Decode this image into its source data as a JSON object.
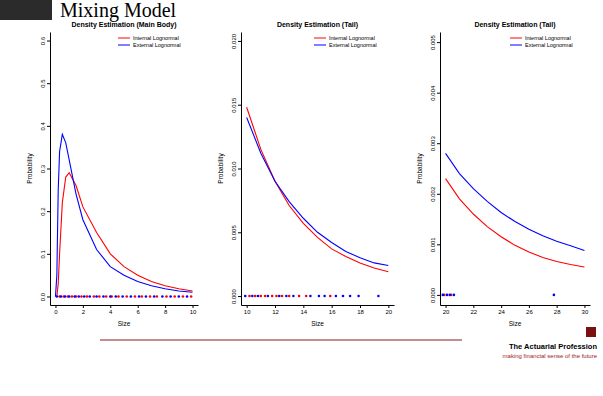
{
  "page": {
    "title": "Mixing Model",
    "footer_title": "The Actuarial Profession",
    "footer_tagline": "making financial sense of the future"
  },
  "chart_data": [
    {
      "type": "line",
      "title": "Density Estimation (Main Body)",
      "x_label": "Size",
      "y_label": "Probability",
      "x": [
        0,
        0.1,
        0.2,
        0.3,
        0.5,
        0.75,
        1,
        1.5,
        2,
        3,
        4,
        5,
        6,
        7,
        8,
        9,
        10
      ],
      "series": [
        {
          "name": "Internal Lognormal",
          "color": "#ff0000",
          "values": [
            0,
            0,
            0.03,
            0.1,
            0.22,
            0.28,
            0.29,
            0.26,
            0.21,
            0.15,
            0.1,
            0.07,
            0.05,
            0.035,
            0.025,
            0.018,
            0.013
          ]
        },
        {
          "name": "External Lognormal",
          "color": "#0000ff",
          "values": [
            0,
            0.05,
            0.25,
            0.34,
            0.38,
            0.36,
            0.32,
            0.24,
            0.18,
            0.11,
            0.07,
            0.05,
            0.035,
            0.025,
            0.018,
            0.013,
            0.01
          ]
        }
      ],
      "rug": [
        {
          "color": "#ff0000",
          "x": [
            0.3,
            0.6,
            0.9,
            1.2,
            1.5,
            1.9,
            2.3,
            2.8,
            3.2,
            3.7,
            4.1,
            4.6,
            5.2,
            5.8,
            6.3,
            6.9,
            7.4,
            8.1,
            8.7,
            9.3,
            9.9
          ],
          "values": [
            0,
            0,
            0,
            0,
            0,
            0,
            0,
            0,
            0,
            0,
            0,
            0,
            0,
            0,
            0,
            0,
            0,
            0,
            0,
            0,
            0
          ]
        },
        {
          "color": "#0000ff",
          "x": [
            0.1,
            0.4,
            0.7,
            1.0,
            1.4,
            1.7,
            2.1,
            2.5,
            3.0,
            3.5,
            4.0,
            4.4,
            4.9,
            5.5,
            6.1,
            6.6,
            7.2,
            7.8,
            8.4,
            9.0,
            9.6
          ],
          "values": [
            0,
            0,
            0,
            0,
            0,
            0,
            0,
            0,
            0,
            0,
            0,
            0,
            0,
            0,
            0,
            0,
            0,
            0,
            0,
            0,
            0
          ]
        }
      ],
      "xlim": [
        -0.4,
        10.4
      ],
      "xticks": [
        0,
        2,
        4,
        6,
        8,
        10
      ],
      "ylim": [
        -0.02,
        0.62
      ],
      "yticks": [
        {
          "value": 0,
          "label": "0.0"
        },
        {
          "value": 0.1,
          "label": "0.1"
        },
        {
          "value": 0.2,
          "label": "0.2"
        },
        {
          "value": 0.3,
          "label": "0.3"
        },
        {
          "value": 0.4,
          "label": "0.4"
        },
        {
          "value": 0.5,
          "label": "0.5"
        },
        {
          "value": 0.6,
          "label": "0.6"
        }
      ],
      "legend": "top-right"
    },
    {
      "type": "line",
      "title": "Density Estimation (Tail)",
      "x_label": "Size",
      "y_label": "Probability",
      "x": [
        10,
        11,
        12,
        13,
        14,
        15,
        16,
        17,
        18,
        19,
        20
      ],
      "series": [
        {
          "name": "Internal Lognormal",
          "color": "#ff0000",
          "values": [
            0.0148,
            0.0115,
            0.009,
            0.0071,
            0.0057,
            0.0046,
            0.0037,
            0.0031,
            0.0026,
            0.0022,
            0.0019
          ]
        },
        {
          "name": "External Lognormal",
          "color": "#0000ff",
          "values": [
            0.014,
            0.0112,
            0.009,
            0.0074,
            0.0061,
            0.005,
            0.0042,
            0.0035,
            0.003,
            0.0026,
            0.0024
          ]
        }
      ],
      "rug": [
        {
          "color": "#ff0000",
          "x": [
            10.2,
            10.6,
            11,
            11.3,
            11.8,
            12.1,
            12.5,
            13,
            13.7,
            14.2,
            15.9
          ],
          "values": [
            0,
            0,
            0,
            0,
            0,
            0,
            0,
            0,
            0,
            0,
            0
          ]
        },
        {
          "color": "#0000ff",
          "x": [
            9.9,
            10.4,
            10.8,
            11.5,
            12.3,
            12.8,
            13.3,
            14.5,
            15.1,
            15.5,
            16.3,
            16.8,
            17.3,
            17.9,
            19.3
          ],
          "values": [
            0,
            0,
            0,
            0,
            0,
            0,
            0,
            0,
            0,
            0,
            0,
            0,
            0,
            0,
            0
          ]
        }
      ],
      "xlim": [
        9.6,
        20.4
      ],
      "xticks": [
        10,
        12,
        14,
        16,
        18,
        20
      ],
      "ylim": [
        -0.0007,
        0.0207
      ],
      "yticks": [
        {
          "value": 0,
          "label": "0.000"
        },
        {
          "value": 0.005,
          "label": "0.005"
        },
        {
          "value": 0.01,
          "label": "0.010"
        },
        {
          "value": 0.015,
          "label": "0.015"
        },
        {
          "value": 0.02,
          "label": "0.020"
        }
      ],
      "legend": "top-right"
    },
    {
      "type": "line",
      "title": "Density Estimation (Tail)",
      "x_label": "Size",
      "y_label": "Probability",
      "x": [
        20,
        21,
        22,
        23,
        24,
        25,
        26,
        27,
        28,
        29,
        30
      ],
      "series": [
        {
          "name": "Internal Lognormal",
          "color": "#ff0000",
          "values": [
            0.0023,
            0.0019,
            0.0016,
            0.00135,
            0.00115,
            0.00098,
            0.00085,
            0.00074,
            0.00066,
            0.0006,
            0.00055
          ]
        },
        {
          "name": "External Lognormal",
          "color": "#0000ff",
          "values": [
            0.0028,
            0.0024,
            0.0021,
            0.00185,
            0.00163,
            0.00145,
            0.0013,
            0.00117,
            0.00106,
            0.00097,
            0.00088
          ]
        }
      ],
      "rug": [
        {
          "color": "#ff0000",
          "x": [
            19.9,
            20.4
          ],
          "values": [
            0,
            0
          ]
        },
        {
          "color": "#0000ff",
          "x": [
            19.8,
            20.1,
            20.3,
            20.6,
            27.8
          ],
          "values": [
            0,
            0,
            0,
            0,
            0
          ]
        }
      ],
      "xlim": [
        19.6,
        30.4
      ],
      "xticks": [
        20,
        22,
        24,
        26,
        28,
        30
      ],
      "ylim": [
        -0.0002,
        0.0052
      ],
      "yticks": [
        {
          "value": 0,
          "label": "0.000"
        },
        {
          "value": 0.001,
          "label": "0.001"
        },
        {
          "value": 0.002,
          "label": "0.002"
        },
        {
          "value": 0.003,
          "label": "0.003"
        },
        {
          "value": 0.004,
          "label": "0.004"
        },
        {
          "value": 0.005,
          "label": "0.005"
        }
      ],
      "legend": "top-right"
    }
  ]
}
